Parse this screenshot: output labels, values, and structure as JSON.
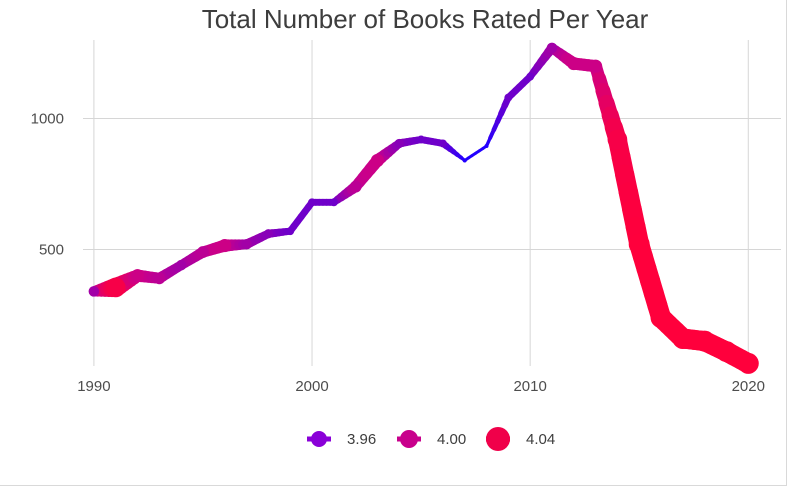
{
  "chart_data": {
    "type": "line",
    "title": "Total Number of Books Rated Per Year",
    "xlabel": "",
    "ylabel": "",
    "xlim": [
      1989.5,
      2021.5
    ],
    "ylim": [
      55,
      1300
    ],
    "x_ticks": [
      "1990",
      "2000",
      "2010",
      "2020"
    ],
    "y_ticks": [
      "500",
      "1000"
    ],
    "grid": true,
    "legend_position": "bottom",
    "color_scale": {
      "low": "#2200ff",
      "mid": "#c8008c",
      "high": "#ff003c",
      "low_value": 3.93,
      "high_value": 4.06
    },
    "legend": [
      {
        "label": "3.96",
        "value": 3.96,
        "color": "#8a00d8"
      },
      {
        "label": "4.00",
        "value": 4.0,
        "color": "#c8008c"
      },
      {
        "label": "4.04",
        "value": 4.04,
        "color": "#f0004a"
      }
    ],
    "series": [
      {
        "x": [
          1990,
          1991,
          1992,
          1993,
          1994,
          1995,
          1996,
          1997,
          1998,
          1999,
          2000,
          2001,
          2002,
          2003,
          2004,
          2005,
          2006,
          2007,
          2008,
          2009,
          2010,
          2011,
          2012,
          2013,
          2014,
          2015,
          2016,
          2017,
          2018,
          2019,
          2020
        ],
        "y": [
          340,
          355,
          400,
          390,
          440,
          490,
          515,
          520,
          560,
          570,
          680,
          680,
          740,
          840,
          905,
          920,
          905,
          840,
          895,
          1080,
          1160,
          1270,
          1210,
          1200,
          920,
          520,
          240,
          160,
          150,
          110,
          65
        ],
        "rating": [
          3.98,
          4.05,
          4.0,
          3.99,
          3.98,
          3.99,
          4.0,
          3.98,
          3.97,
          3.96,
          3.96,
          3.96,
          3.99,
          4.0,
          3.97,
          3.96,
          3.96,
          3.93,
          3.93,
          3.96,
          3.96,
          3.98,
          4.0,
          4.0,
          4.05,
          4.06,
          4.06,
          4.06,
          4.06,
          4.06,
          4.06
        ]
      }
    ]
  }
}
